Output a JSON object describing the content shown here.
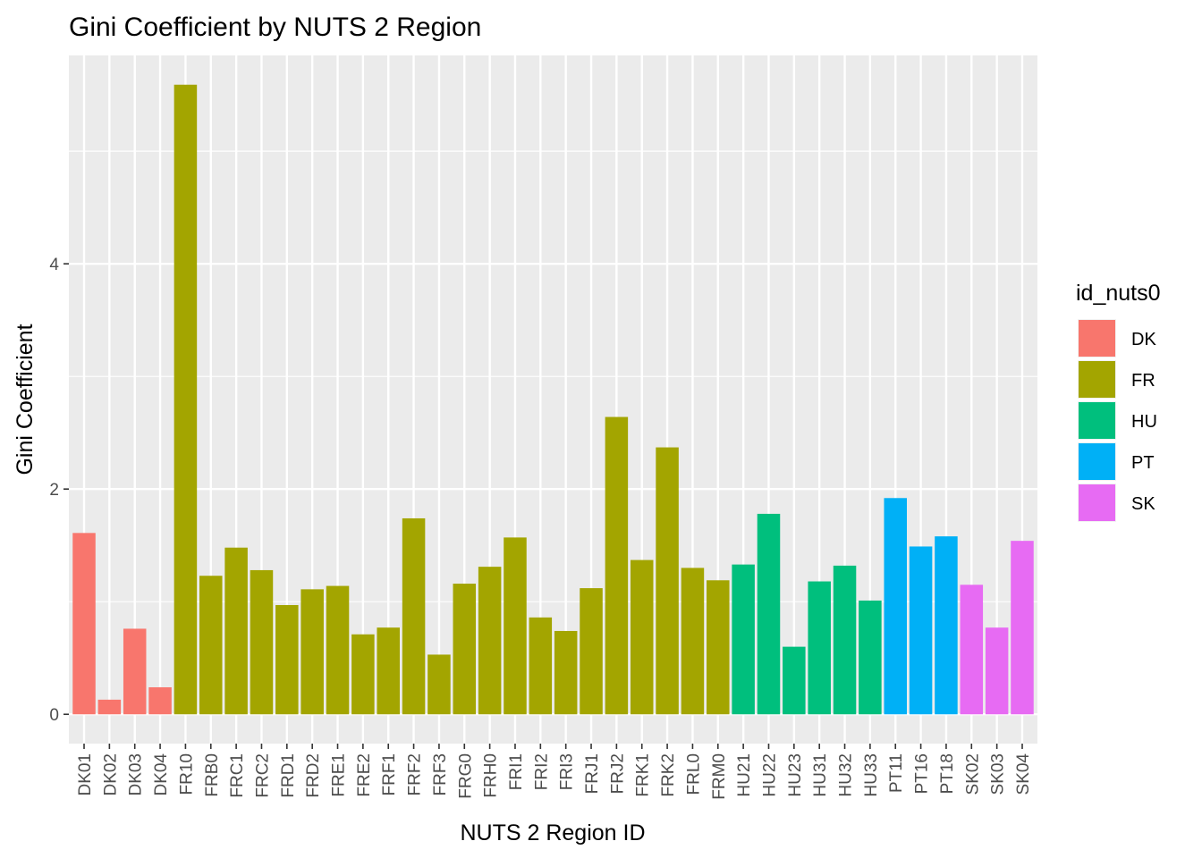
{
  "chart_data": {
    "type": "bar",
    "title": "Gini Coefficient by NUTS 2 Region",
    "xlabel": "NUTS 2 Region ID",
    "ylabel": "Gini Coefficient",
    "ylim": [
      -0.26,
      5.85
    ],
    "yticks": [
      0,
      2,
      4
    ],
    "grid": true,
    "legend": {
      "title": "id_nuts0",
      "placement": "right",
      "entries": [
        {
          "name": "DK",
          "color": "#F8766D"
        },
        {
          "name": "FR",
          "color": "#A3A500"
        },
        {
          "name": "HU",
          "color": "#00BF7D"
        },
        {
          "name": "PT",
          "color": "#00B0F6"
        },
        {
          "name": "SK",
          "color": "#E76BF3"
        }
      ]
    },
    "categories": [
      "DK01",
      "DK02",
      "DK03",
      "DK04",
      "FR10",
      "FRB0",
      "FRC1",
      "FRC2",
      "FRD1",
      "FRD2",
      "FRE1",
      "FRE2",
      "FRF1",
      "FRF2",
      "FRF3",
      "FRG0",
      "FRH0",
      "FRI1",
      "FRI2",
      "FRI3",
      "FRJ1",
      "FRJ2",
      "FRK1",
      "FRK2",
      "FRL0",
      "FRM0",
      "HU21",
      "HU22",
      "HU23",
      "HU31",
      "HU32",
      "HU33",
      "PT11",
      "PT16",
      "PT18",
      "SK02",
      "SK03",
      "SK04"
    ],
    "groups": [
      "DK",
      "DK",
      "DK",
      "DK",
      "FR",
      "FR",
      "FR",
      "FR",
      "FR",
      "FR",
      "FR",
      "FR",
      "FR",
      "FR",
      "FR",
      "FR",
      "FR",
      "FR",
      "FR",
      "FR",
      "FR",
      "FR",
      "FR",
      "FR",
      "FR",
      "FR",
      "HU",
      "HU",
      "HU",
      "HU",
      "HU",
      "HU",
      "PT",
      "PT",
      "PT",
      "SK",
      "SK",
      "SK"
    ],
    "values": [
      1.61,
      0.13,
      0.76,
      0.24,
      5.59,
      1.23,
      1.48,
      1.28,
      0.97,
      1.11,
      1.14,
      0.71,
      0.77,
      1.74,
      0.53,
      1.16,
      1.31,
      1.57,
      0.86,
      0.74,
      1.12,
      2.64,
      1.37,
      2.37,
      1.3,
      1.19,
      1.33,
      1.78,
      0.6,
      1.18,
      1.32,
      1.01,
      1.92,
      1.49,
      1.58,
      1.15,
      0.77,
      1.54
    ]
  }
}
